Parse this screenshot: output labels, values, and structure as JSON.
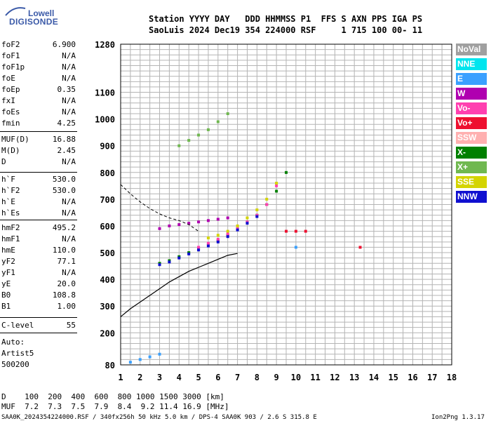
{
  "logo": {
    "line1": "Lowell",
    "line2": "DIGISONDE"
  },
  "header": {
    "row1": "Station YYYY DAY   DDD HHMMSS P1  FFS S AXN PPS IGA PS",
    "row2": "SaoLuis 2024 Dec19 354 224000 RSF     1 715 100 00- 11"
  },
  "params": [
    {
      "k": "foF2",
      "v": "6.900"
    },
    {
      "k": "foF1",
      "v": "N/A"
    },
    {
      "k": "foF1p",
      "v": "N/A"
    },
    {
      "k": "foE",
      "v": "N/A"
    },
    {
      "k": "foEp",
      "v": "0.35"
    },
    {
      "k": "fxI",
      "v": "N/A"
    },
    {
      "k": "foEs",
      "v": "N/A"
    },
    {
      "k": "fmin",
      "v": "4.25"
    },
    {
      "k": "MUF(D)",
      "v": "16.88"
    },
    {
      "k": "M(D)",
      "v": "2.45"
    },
    {
      "k": "D",
      "v": "N/A"
    },
    {
      "k": "h`F",
      "v": "530.0"
    },
    {
      "k": "h`F2",
      "v": "530.0"
    },
    {
      "k": "h`E",
      "v": "N/A"
    },
    {
      "k": "h`Es",
      "v": "N/A"
    },
    {
      "k": "hmF2",
      "v": "495.2"
    },
    {
      "k": "hmF1",
      "v": "N/A"
    },
    {
      "k": "hmE",
      "v": "110.0"
    },
    {
      "k": "yF2",
      "v": "77.1"
    },
    {
      "k": "yF1",
      "v": "N/A"
    },
    {
      "k": "yE",
      "v": "20.0"
    },
    {
      "k": "B0",
      "v": "108.8"
    },
    {
      "k": "B1",
      "v": "1.00"
    },
    {
      "k": "C-level",
      "v": "55"
    }
  ],
  "auto": {
    "l1": "Auto:",
    "l2": "Artist5",
    "l3": "500200"
  },
  "legend": [
    {
      "label": "NoVal",
      "color": "#a0a0a0"
    },
    {
      "label": "NNE",
      "color": "#00e5ee"
    },
    {
      "label": "E",
      "color": "#3aa0ff"
    },
    {
      "label": "W",
      "color": "#b000b0"
    },
    {
      "label": "Vo-",
      "color": "#ff40b0"
    },
    {
      "label": "Vo+",
      "color": "#ee1030"
    },
    {
      "label": "SSW",
      "color": "#ffb0b0"
    },
    {
      "label": "X-",
      "color": "#008000"
    },
    {
      "label": "X+",
      "color": "#70b850"
    },
    {
      "label": "SSE",
      "color": "#d4d400"
    },
    {
      "label": "NNW",
      "color": "#1010d0"
    }
  ],
  "dtable": {
    "row1": "D    100  200  400  600  800 1000 1500 3000 [km]",
    "row2": "MUF  7.2  7.3  7.5  7.9  8.4  9.2 11.4 16.9 [MHz]"
  },
  "footer": {
    "left": "SAA0K_2024354224000.RSF / 340fx256h 50 kHz 5.0 km / DPS-4 SAA0K 903 / 2.6 S 315.8 E",
    "right": "Ion2Png 1.3.17"
  },
  "chart_data": {
    "type": "scatter",
    "xlim": [
      1,
      18
    ],
    "ylim": [
      80,
      1280
    ],
    "xticks": [
      1,
      2,
      3,
      4,
      5,
      6,
      7,
      8,
      9,
      10,
      11,
      12,
      13,
      14,
      15,
      16,
      17,
      18
    ],
    "yticks": [
      80,
      200,
      300,
      400,
      500,
      600,
      700,
      800,
      900,
      1000,
      1100,
      1280
    ],
    "grid": true,
    "legend_position": "right",
    "series": [
      {
        "name": "X-",
        "color": "#008000",
        "x": [
          3.0,
          3.5,
          4.0,
          4.5,
          5.0,
          5.5,
          6.0,
          6.5,
          7.0,
          7.5,
          8.0,
          8.5,
          9.0,
          9.5
        ],
        "y": [
          460,
          470,
          485,
          500,
          515,
          530,
          545,
          565,
          590,
          615,
          640,
          680,
          730,
          800
        ]
      },
      {
        "name": "Vo-",
        "color": "#ff40b0",
        "x": [
          5.0,
          5.5,
          6.0,
          6.5,
          7.0,
          7.5,
          8.0,
          8.5,
          9.0
        ],
        "y": [
          520,
          535,
          550,
          570,
          590,
          615,
          640,
          680,
          750
        ]
      },
      {
        "name": "W",
        "color": "#b000b0",
        "x": [
          3.0,
          3.5,
          4.0,
          4.5,
          5.0,
          5.5,
          6.0,
          6.5
        ],
        "y": [
          590,
          600,
          605,
          610,
          615,
          620,
          625,
          630
        ]
      },
      {
        "name": "SSE",
        "color": "#d4d400",
        "x": [
          5.5,
          6.0,
          6.5,
          7.0,
          7.5,
          8.0,
          8.5,
          9.0
        ],
        "y": [
          555,
          565,
          580,
          600,
          630,
          660,
          700,
          760
        ]
      },
      {
        "name": "NNW",
        "color": "#1010d0",
        "x": [
          3.0,
          3.5,
          4.0,
          4.5,
          5.0,
          5.5,
          6.0,
          6.5,
          7.0,
          7.5,
          8.0
        ],
        "y": [
          455,
          465,
          480,
          495,
          510,
          525,
          540,
          560,
          585,
          610,
          635
        ]
      },
      {
        "name": "Vo+",
        "color": "#ee1030",
        "x": [
          9.5,
          10.0,
          10.5,
          13.3
        ],
        "y": [
          580,
          580,
          580,
          520
        ]
      },
      {
        "name": "E",
        "color": "#3aa0ff",
        "x": [
          1.5,
          2.0,
          2.5,
          3.0,
          10.0
        ],
        "y": [
          90,
          100,
          110,
          120,
          520
        ]
      },
      {
        "name": "X+",
        "color": "#70b850",
        "x": [
          4.0,
          4.5,
          5.0,
          5.5,
          6.0,
          6.5
        ],
        "y": [
          900,
          920,
          940,
          960,
          990,
          1020
        ]
      }
    ],
    "profile_x": [
      1,
      1.5,
      2,
      2.5,
      3,
      3.5,
      4,
      4.5,
      5,
      5.5,
      6,
      6.5,
      7.0
    ],
    "profile_y": [
      260,
      290,
      315,
      340,
      365,
      390,
      410,
      430,
      445,
      460,
      475,
      490,
      497
    ],
    "extrapolated_x": [
      1,
      1.5,
      2,
      2.5,
      3,
      3.5,
      4,
      4.5,
      5
    ],
    "extrapolated_y": [
      755,
      720,
      690,
      665,
      645,
      630,
      620,
      605,
      580
    ]
  }
}
